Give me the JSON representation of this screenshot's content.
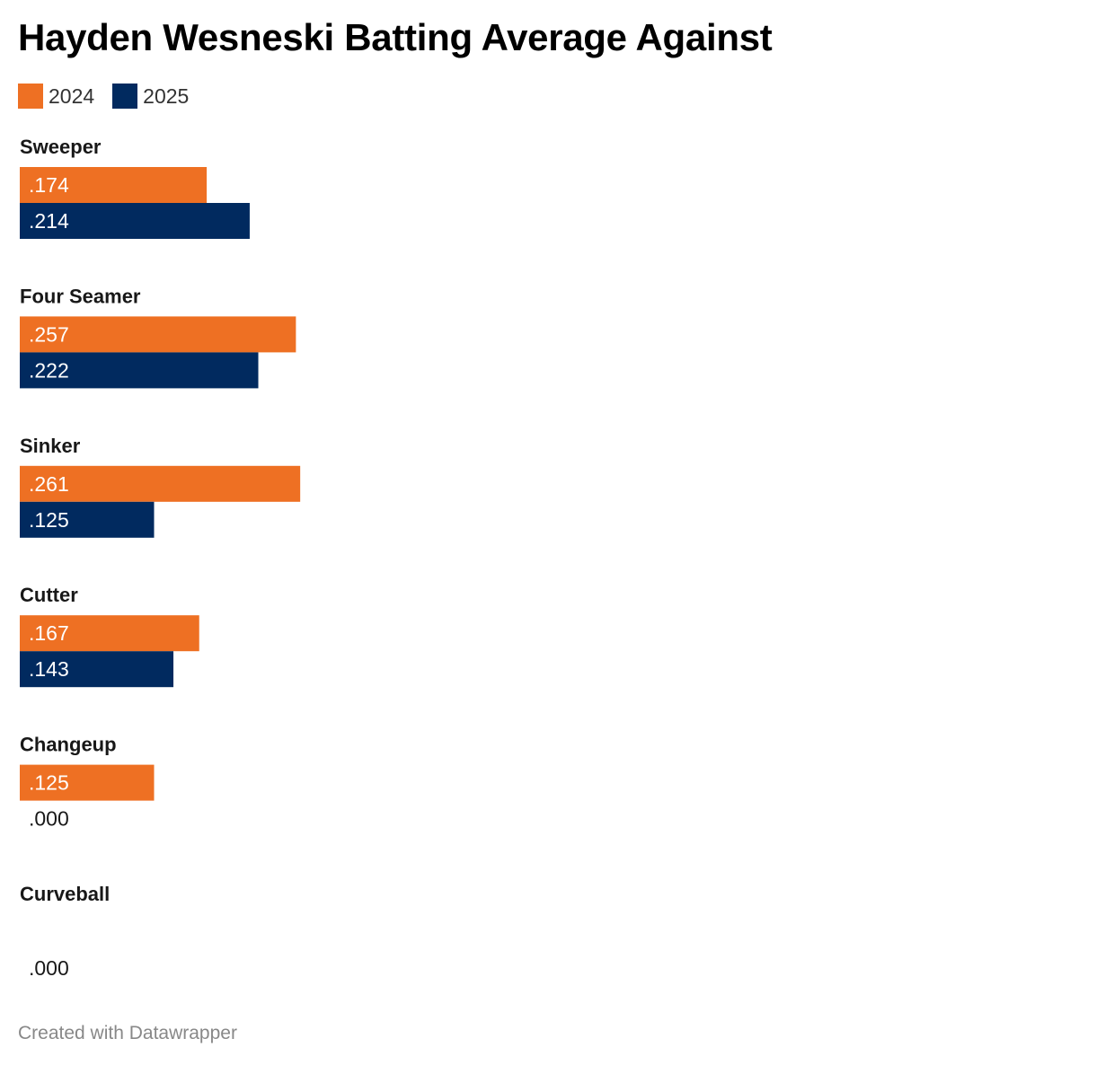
{
  "chart_data": {
    "type": "bar",
    "orientation": "horizontal",
    "title": "Hayden Wesneski Batting Average Against",
    "categories": [
      "Sweeper",
      "Four Seamer",
      "Sinker",
      "Cutter",
      "Changeup",
      "Curveball"
    ],
    "series": [
      {
        "name": "2024",
        "color": "#ee7023",
        "values": [
          0.174,
          0.257,
          0.261,
          0.167,
          0.125,
          null
        ],
        "labels": [
          ".174",
          ".257",
          ".261",
          ".167",
          ".125",
          ""
        ]
      },
      {
        "name": "2025",
        "color": "#012a5f",
        "values": [
          0.214,
          0.222,
          0.125,
          0.143,
          0.0,
          0.0
        ],
        "labels": [
          ".214",
          ".222",
          ".125",
          ".143",
          ".000",
          ".000"
        ]
      }
    ],
    "xlim": [
      0,
      1
    ],
    "legend": "top-left",
    "grid": false
  },
  "footer": "Created with Datawrapper"
}
